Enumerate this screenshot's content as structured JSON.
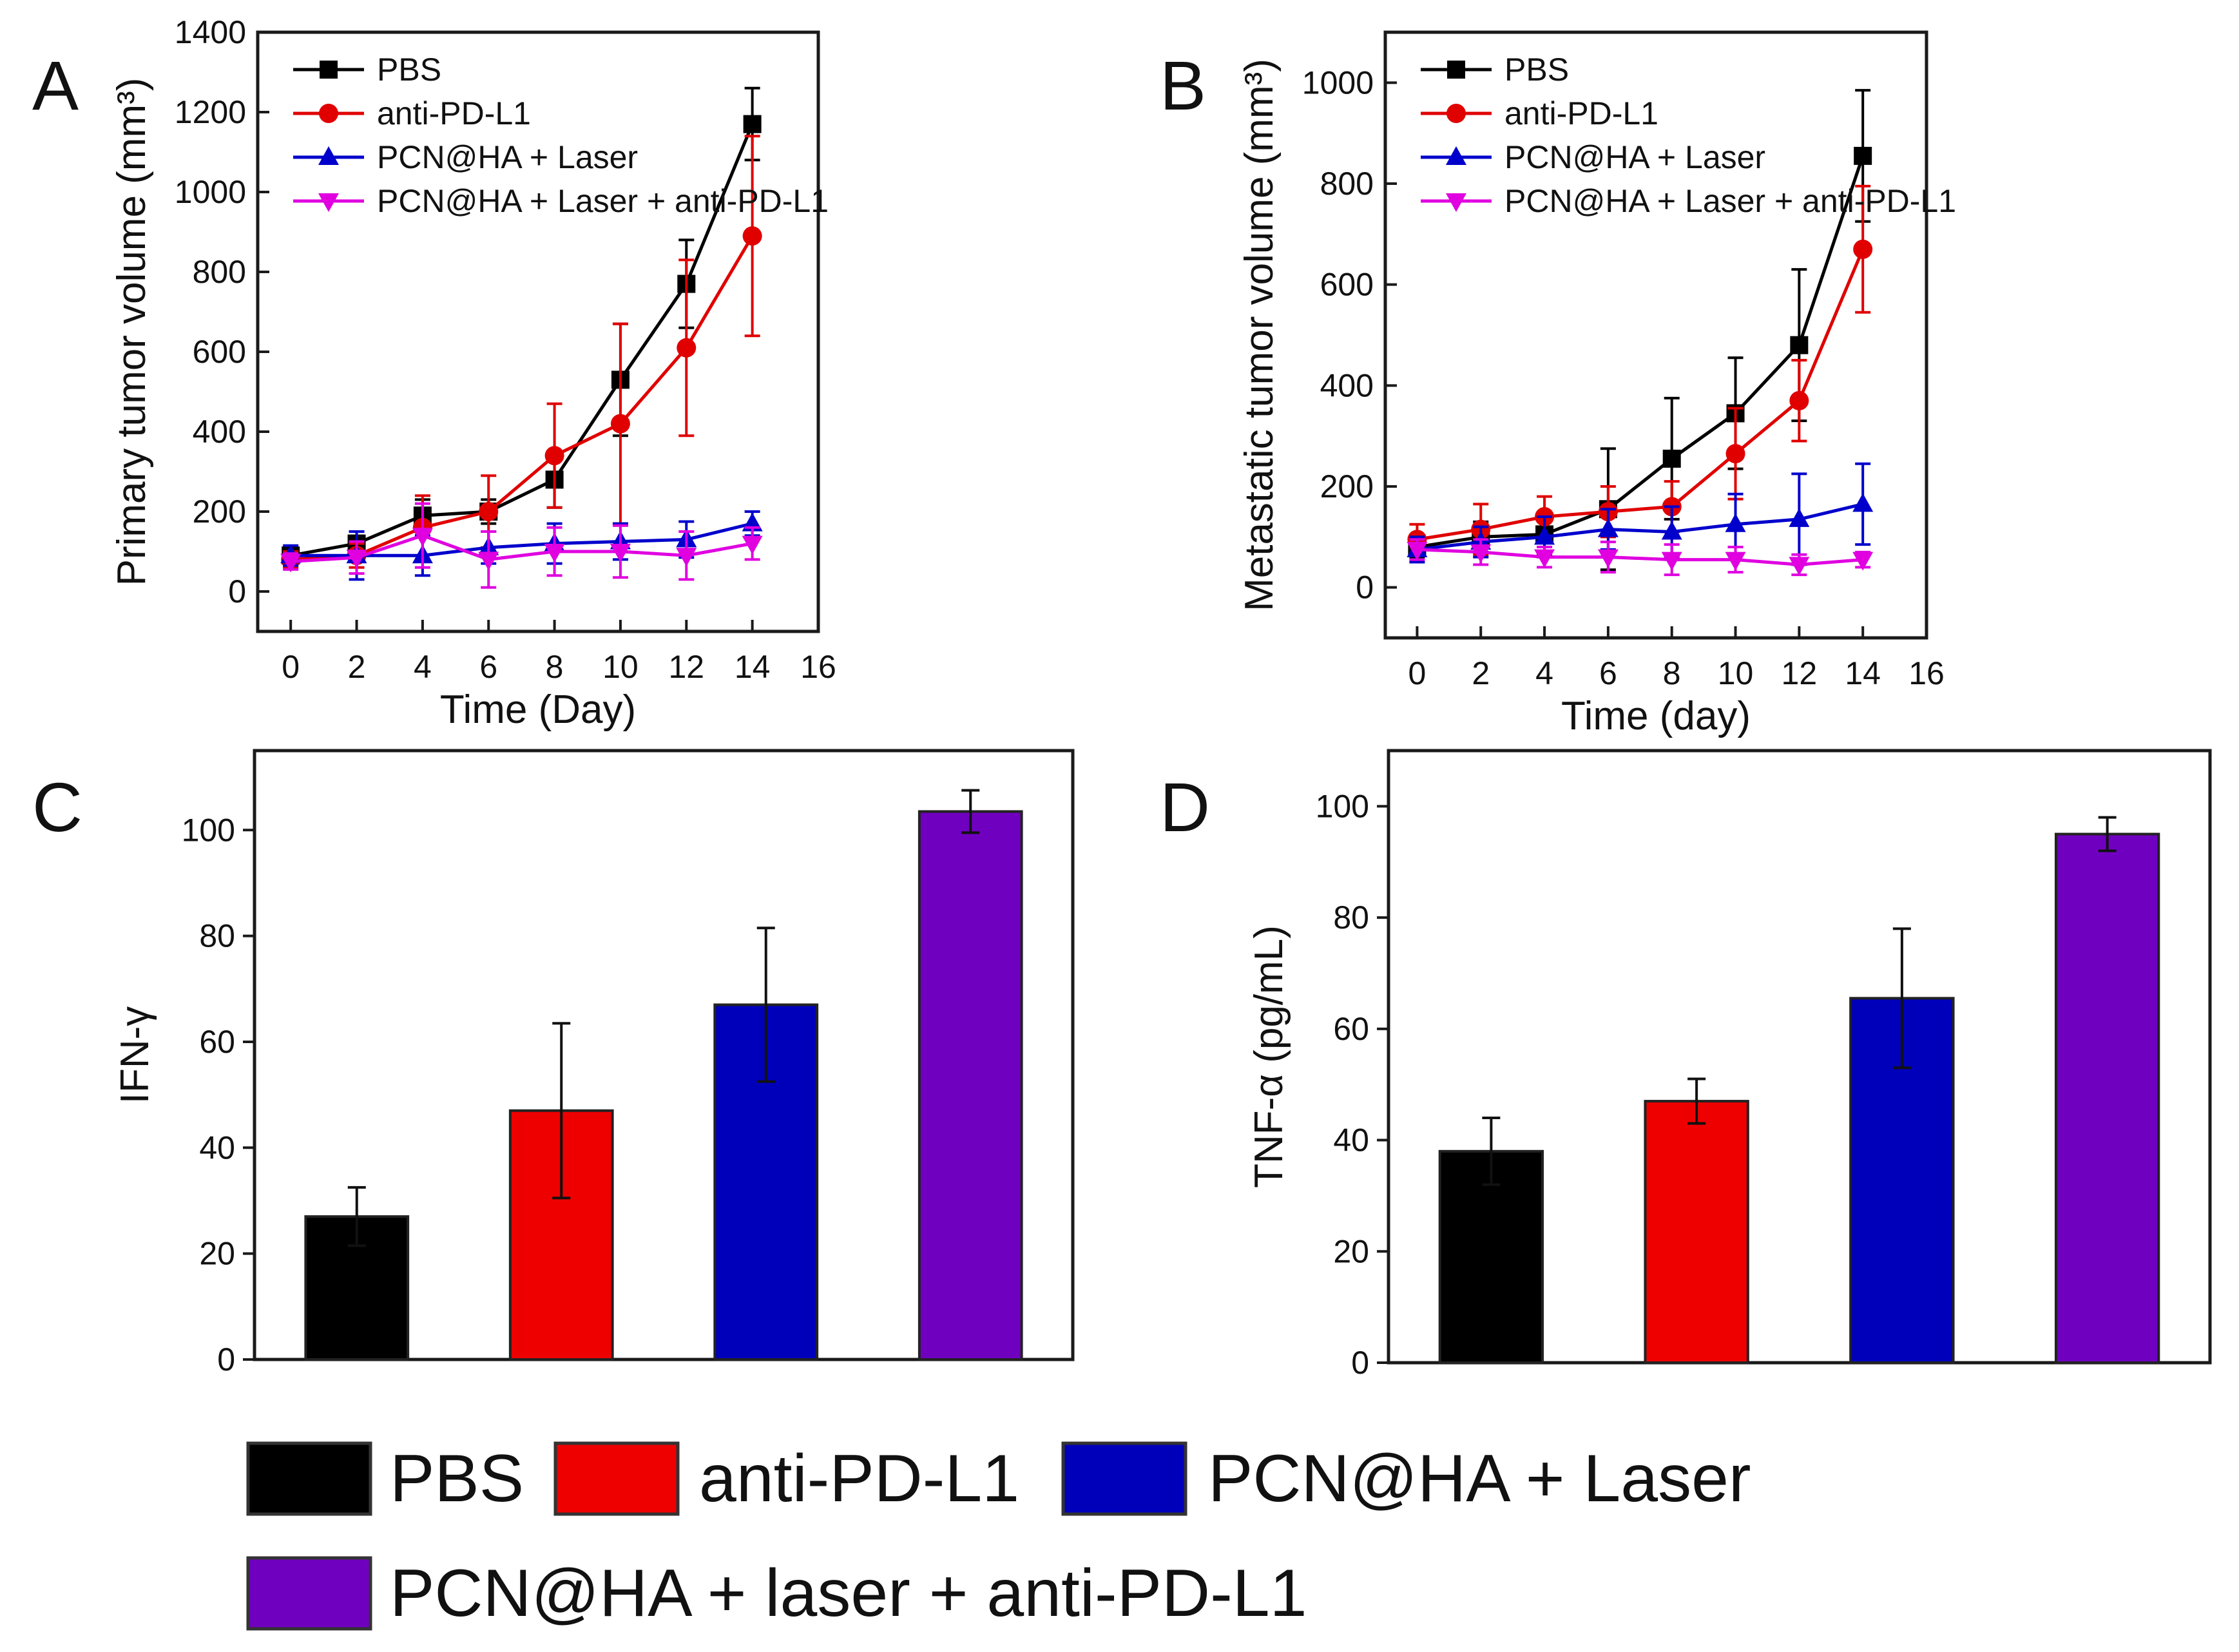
{
  "colors": {
    "PBS": "#000000",
    "anti-PD-L1": "#e00000",
    "PCN@HA + Laser": "#0000cc",
    "PCN@HA + Laser + anti-PD-L1": "#e000e0",
    "bar_black": "#000000",
    "bar_red": "#ee0000",
    "bar_blue": "#0000bb",
    "bar_purple": "#7000c0"
  },
  "chart_data": [
    {
      "panel": "A",
      "type": "line",
      "title": "",
      "xlabel": "Time (Day)",
      "ylabel": "Primary tumor volume (mm³)",
      "xlim": [
        -1,
        16
      ],
      "ylim": [
        -100,
        1400
      ],
      "xticks": [
        "0",
        "2",
        "4",
        "6",
        "8",
        "10",
        "12",
        "14",
        "16"
      ],
      "yticks": [
        "0",
        "200",
        "400",
        "600",
        "800",
        "1000",
        "1200",
        "1400"
      ],
      "legend_position": "top-left",
      "x": [
        0,
        2,
        4,
        6,
        8,
        10,
        12,
        14
      ],
      "series": [
        {
          "name": "PBS",
          "marker": "square",
          "values": [
            90,
            120,
            190,
            200,
            280,
            530,
            770,
            1170
          ],
          "errors": [
            20,
            30,
            40,
            30,
            70,
            140,
            110,
            90
          ]
        },
        {
          "name": "anti-PD-L1",
          "marker": "circle",
          "values": [
            80,
            90,
            160,
            200,
            340,
            420,
            610,
            890
          ],
          "errors": [
            20,
            30,
            80,
            90,
            130,
            250,
            220,
            250
          ]
        },
        {
          "name": "PCN@HA + Laser",
          "marker": "triangle-up",
          "values": [
            90,
            90,
            90,
            110,
            120,
            125,
            130,
            170
          ],
          "errors": [
            25,
            60,
            50,
            40,
            50,
            45,
            45,
            30
          ]
        },
        {
          "name": "PCN@HA + Laser + anti-PD-L1",
          "marker": "triangle-down",
          "values": [
            75,
            85,
            140,
            80,
            100,
            100,
            90,
            120
          ],
          "errors": [
            20,
            40,
            80,
            70,
            60,
            65,
            60,
            40
          ]
        }
      ]
    },
    {
      "panel": "B",
      "type": "line",
      "title": "",
      "xlabel": "Time (day)",
      "ylabel": "Metastatic tumor volume (mm³)",
      "xlim": [
        -1,
        16
      ],
      "ylim": [
        -100,
        1100
      ],
      "xticks": [
        "0",
        "2",
        "4",
        "6",
        "8",
        "10",
        "12",
        "14",
        "16"
      ],
      "yticks": [
        "0",
        "200",
        "400",
        "600",
        "800",
        "1000"
      ],
      "legend_position": "top-left",
      "x": [
        0,
        2,
        4,
        6,
        8,
        10,
        12,
        14
      ],
      "series": [
        {
          "name": "PBS",
          "marker": "square",
          "values": [
            80,
            100,
            105,
            155,
            255,
            345,
            480,
            855
          ],
          "errors": [
            20,
            30,
            40,
            120,
            120,
            110,
            150,
            130
          ]
        },
        {
          "name": "anti-PD-L1",
          "marker": "circle",
          "values": [
            95,
            115,
            140,
            150,
            160,
            265,
            370,
            670
          ],
          "errors": [
            30,
            50,
            40,
            50,
            50,
            90,
            80,
            125
          ]
        },
        {
          "name": "PCN@HA + Laser",
          "marker": "triangle-up",
          "values": [
            75,
            90,
            100,
            115,
            110,
            125,
            135,
            165
          ],
          "errors": [
            25,
            30,
            40,
            40,
            50,
            60,
            90,
            80
          ]
        },
        {
          "name": "PCN@HA + Laser + anti-PD-L1",
          "marker": "triangle-down",
          "values": [
            75,
            70,
            60,
            60,
            55,
            55,
            45,
            55
          ],
          "errors": [
            20,
            25,
            20,
            30,
            30,
            25,
            20,
            15
          ]
        }
      ]
    },
    {
      "panel": "C",
      "type": "bar",
      "title": "",
      "xlabel": "",
      "ylabel": "IFN-γ",
      "ylim": [
        0,
        115
      ],
      "yticks": [
        "0",
        "20",
        "40",
        "60",
        "80",
        "100"
      ],
      "categories": [
        "PBS",
        "anti-PD-L1",
        "PCN@HA + Laser",
        "PCN@HA + laser + anti-PD-L1"
      ],
      "values": [
        27,
        47,
        67,
        103.5
      ],
      "errors": [
        5.5,
        16.5,
        14.5,
        4
      ]
    },
    {
      "panel": "D",
      "type": "bar",
      "title": "",
      "xlabel": "",
      "ylabel": "TNF-α (pg/mL)",
      "ylim": [
        0,
        110
      ],
      "yticks": [
        "0",
        "20",
        "40",
        "60",
        "80",
        "100"
      ],
      "categories": [
        "PBS",
        "anti-PD-L1",
        "PCN@HA + Laser",
        "PCN@HA + laser + anti-PD-L1"
      ],
      "values": [
        38,
        47,
        65.5,
        95
      ],
      "errors": [
        6,
        4,
        12.5,
        3
      ]
    }
  ],
  "bottom_legend": {
    "items": [
      {
        "label": "PBS",
        "color": "#000000"
      },
      {
        "label": "anti-PD-L1",
        "color": "#ee0000"
      },
      {
        "label": "PCN@HA + Laser",
        "color": "#0000bb"
      },
      {
        "label": "PCN@HA + laser + anti-PD-L1",
        "color": "#7000c0"
      }
    ]
  }
}
